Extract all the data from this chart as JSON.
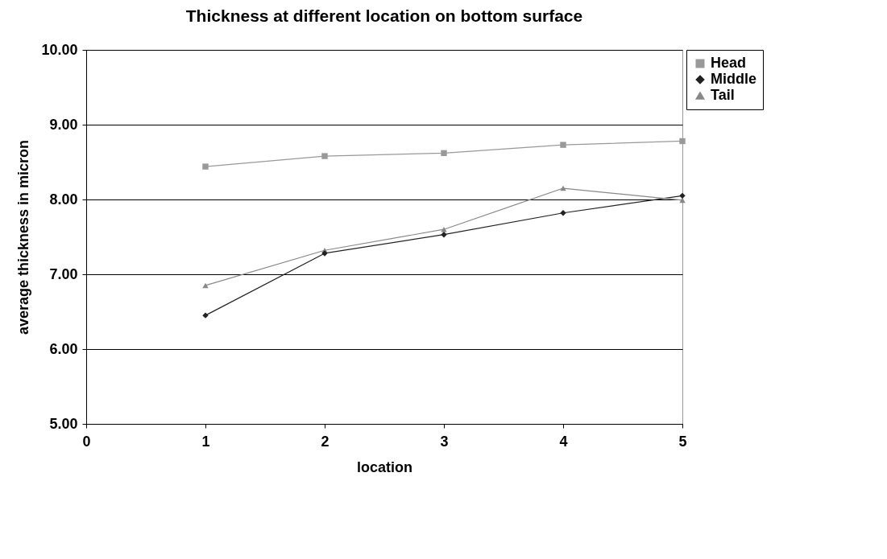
{
  "chart_data": {
    "type": "line",
    "title": "Thickness at different location on bottom surface",
    "xlabel": "location",
    "ylabel": "average thickness in micron",
    "x": [
      1,
      2,
      3,
      4,
      5
    ],
    "series": [
      {
        "name": "Head",
        "color": "#999999",
        "marker": "square",
        "values": [
          8.44,
          8.58,
          8.62,
          8.73,
          8.78
        ]
      },
      {
        "name": "Middle",
        "color": "#222222",
        "marker": "diamond",
        "values": [
          6.45,
          7.28,
          7.53,
          7.82,
          8.05
        ]
      },
      {
        "name": "Tail",
        "color": "#888888",
        "marker": "triangle",
        "values": [
          6.85,
          7.32,
          7.6,
          8.15,
          7.99
        ]
      }
    ],
    "xlim": [
      0,
      5
    ],
    "xticks": [
      0,
      1,
      2,
      3,
      4,
      5
    ],
    "ylim": [
      5,
      10
    ],
    "yticks": [
      {
        "value": 5,
        "label": "5.00"
      },
      {
        "value": 6,
        "label": "6.00"
      },
      {
        "value": 7,
        "label": "7.00"
      },
      {
        "value": 8,
        "label": "8.00"
      },
      {
        "value": 9,
        "label": "9.00"
      },
      {
        "value": 10,
        "label": "10.00"
      }
    ],
    "grid": "y",
    "legend": "right",
    "line_style": "solid"
  }
}
